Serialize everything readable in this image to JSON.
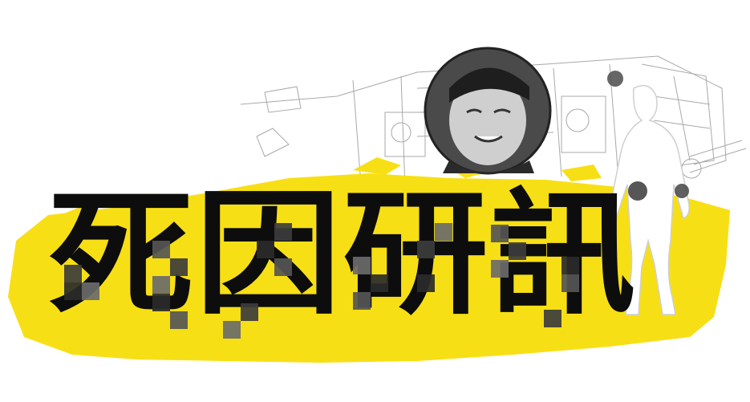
{
  "title": "死因研訊",
  "colors": {
    "accent_yellow": "#f7df15",
    "text_black": "#0d0d0d",
    "sketch_gray": "#9a9a9a",
    "mosaic_dark": "#3c3c3c",
    "mosaic_mid": "#6a6a6a"
  },
  "decorations": [
    "floor-plan-sketch",
    "portrait-circle",
    "body-silhouette",
    "mosaic-censor-blocks",
    "paint-splatter"
  ]
}
